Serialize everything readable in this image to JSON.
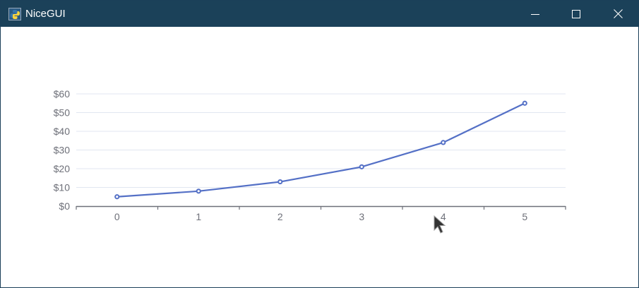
{
  "window": {
    "title": "NiceGUI",
    "icon": "nicegui-python-icon",
    "controls": [
      "minimize-icon",
      "maximize-icon",
      "close-icon"
    ]
  },
  "colors": {
    "titlebar": "#1b4159",
    "series": "#5470c6",
    "axis": "#6e7079",
    "grid": "#e0e6f1",
    "label": "#6e7079"
  },
  "chart_data": {
    "type": "line",
    "x": [
      0,
      1,
      2,
      3,
      4,
      5
    ],
    "categories": [
      "0",
      "1",
      "2",
      "3",
      "4",
      "5"
    ],
    "series": [
      {
        "values": [
          5,
          8,
          13,
          21,
          34,
          55
        ]
      }
    ],
    "yticks": [
      "$0",
      "$10",
      "$20",
      "$30",
      "$40",
      "$50",
      "$60"
    ],
    "ylim": [
      0,
      60
    ],
    "grid": true,
    "legend": "none"
  }
}
